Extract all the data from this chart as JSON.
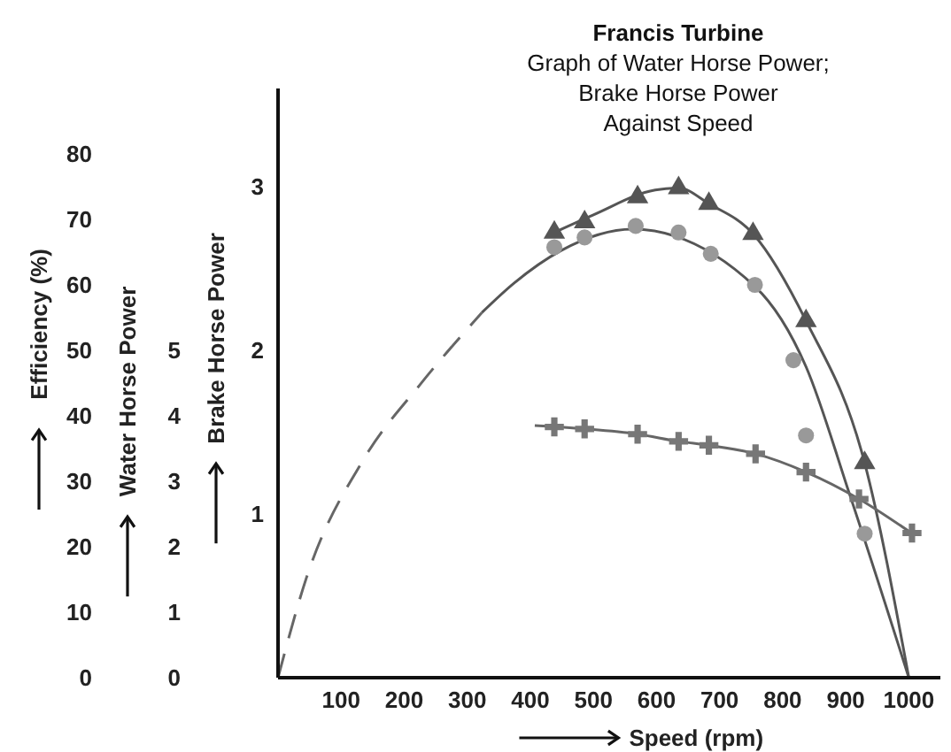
{
  "chart_data": {
    "type": "scatter",
    "title": "Francis Turbine",
    "subtitle": "Graph of Water Horse Power;\nBrake Horse Power\nAgainst Speed",
    "xlabel": "Speed (rpm)",
    "ylabel": "Brake Horse Power",
    "y2label": "Water Horse Power",
    "y3label": "Efficiency (%)",
    "xlim": [
      0,
      1050
    ],
    "xticks": [
      100,
      200,
      300,
      400,
      500,
      600,
      700,
      800,
      900,
      1000
    ],
    "ylim": [
      0,
      3.6
    ],
    "yticks": [
      1,
      2,
      3
    ],
    "y2lim": [
      0,
      9
    ],
    "y2ticks": [
      0,
      1,
      2,
      3,
      4,
      5
    ],
    "y3lim": [
      0,
      90
    ],
    "y3ticks": [
      0,
      10,
      20,
      30,
      40,
      50,
      60,
      70,
      80
    ],
    "series": [
      {
        "axis": "y3",
        "marker": "triangle",
        "color": "#555555",
        "x": [
          438,
          486,
          570,
          635,
          683,
          753,
          837,
          930
        ],
        "values": [
          68,
          69.6,
          73.4,
          74.8,
          72.4,
          67.8,
          54.5,
          32.8
        ]
      },
      {
        "type": "line",
        "axis": "y3",
        "marker": "none",
        "line_style": "solid",
        "color": "#555555",
        "x": [
          438,
          500,
          598,
          635,
          683,
          753,
          837,
          930,
          1000
        ],
        "values": [
          68,
          70.7,
          74.5,
          74.8,
          72.4,
          67.8,
          54.5,
          32.8,
          0
        ]
      },
      {
        "axis": "y",
        "marker": "circle",
        "color": "#999999",
        "x": [
          438,
          486,
          567,
          635,
          686,
          756,
          817,
          837,
          930
        ],
        "values": [
          2.63,
          2.69,
          2.76,
          2.72,
          2.59,
          2.4,
          1.94,
          1.48,
          0.88
        ]
      },
      {
        "type": "line",
        "axis": "y",
        "marker": "none",
        "line_style": "dashed",
        "color": "#666666",
        "x": [
          0,
          45,
          135,
          225,
          323
        ],
        "values": [
          0,
          0.61,
          1.33,
          1.79,
          2.23
        ]
      },
      {
        "type": "line",
        "axis": "y",
        "marker": "none",
        "line_style": "solid",
        "color": "#555555",
        "x": [
          323,
          374,
          449,
          562,
          756,
          837,
          907,
          1000
        ],
        "values": [
          2.23,
          2.41,
          2.61,
          2.74,
          2.39,
          1.9,
          1.11,
          0
        ]
      },
      {
        "axis": "y2",
        "marker": "cross",
        "color": "#777777",
        "x": [
          438,
          486,
          570,
          635,
          683,
          757,
          837,
          921,
          1005
        ],
        "values": [
          3.83,
          3.8,
          3.72,
          3.61,
          3.55,
          3.42,
          3.14,
          2.73,
          2.21
        ]
      },
      {
        "type": "line",
        "axis": "y2",
        "marker": "none",
        "line_style": "solid",
        "color": "#666666",
        "x": [
          407,
          486,
          570,
          635,
          683,
          757,
          837,
          921,
          1010
        ],
        "values": [
          3.85,
          3.8,
          3.72,
          3.61,
          3.55,
          3.42,
          3.14,
          2.73,
          2.17
        ]
      }
    ]
  }
}
